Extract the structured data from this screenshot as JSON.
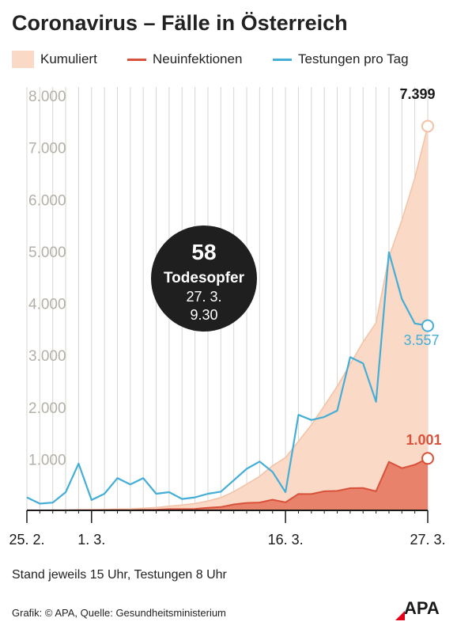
{
  "title": "Coronavirus – Fälle in Österreich",
  "legend": {
    "cumulative": "Kumuliert",
    "new_infections": "Neuinfektionen",
    "tests": "Testungen pro Tag"
  },
  "colors": {
    "cumulative_fill": "#fbd9c7",
    "cumulative_line": "#f4c1a4",
    "new_fill": "#e8826a",
    "new_line": "#d9513a",
    "tests_line": "#44aed6",
    "axis_text": "#b3b0a8",
    "grid": "#d9d6d0"
  },
  "annotation": {
    "number": "58",
    "label": "Todesopfer",
    "date": "27. 3.",
    "time": "9.30"
  },
  "footer": {
    "note": "Stand jeweils 15 Uhr, Testungen 8 Uhr",
    "source": "Grafik: © APA, Quelle: Gesundheitsministerium",
    "logo": "APA"
  },
  "chart_data": {
    "type": "area",
    "x": [
      "25. 2.",
      "26. 2.",
      "27. 2.",
      "28. 2.",
      "29. 2.",
      "1. 3.",
      "2. 3.",
      "3. 3.",
      "4. 3.",
      "5. 3.",
      "6. 3.",
      "7. 3.",
      "8. 3.",
      "9. 3.",
      "10. 3.",
      "11. 3.",
      "12. 3.",
      "13. 3.",
      "14. 3.",
      "15. 3.",
      "16. 3.",
      "17. 3.",
      "18. 3.",
      "19. 3.",
      "20. 3.",
      "21. 3.",
      "22. 3.",
      "23. 3.",
      "24. 3.",
      "25. 3.",
      "26. 3.",
      "27. 3."
    ],
    "x_tick_labels": [
      "25. 2.",
      "1. 3.",
      "16. 3.",
      "27. 3."
    ],
    "ylim": [
      0,
      8000
    ],
    "y_tick_labels": [
      "1.000",
      "2.000",
      "3.000",
      "4.000",
      "5.000",
      "6.000",
      "7.000",
      "8.000"
    ],
    "y_ticks": [
      1000,
      2000,
      3000,
      4000,
      5000,
      6000,
      7000,
      8000
    ],
    "grid": "vertical lines at each day",
    "series": [
      {
        "name": "Kumuliert",
        "values": [
          2,
          2,
          3,
          5,
          9,
          14,
          18,
          24,
          29,
          41,
          55,
          79,
          104,
          131,
          182,
          246,
          361,
          504,
          655,
          860,
          1016,
          1332,
          1646,
          2013,
          2388,
          2814,
          3244,
          3611,
          4876,
          5588,
          6398,
          7399
        ]
      },
      {
        "name": "Neuinfektionen",
        "values": [
          2,
          0,
          1,
          2,
          4,
          5,
          4,
          6,
          5,
          12,
          14,
          24,
          25,
          27,
          51,
          64,
          115,
          143,
          151,
          205,
          156,
          316,
          314,
          367,
          375,
          426,
          430,
          367,
          934,
          812,
          878,
          1001
        ]
      },
      {
        "name": "Testungen pro Tag",
        "values": [
          250,
          130,
          150,
          350,
          900,
          200,
          320,
          620,
          500,
          620,
          320,
          350,
          220,
          250,
          320,
          360,
          580,
          800,
          940,
          740,
          350,
          1840,
          1740,
          1800,
          1920,
          2950,
          2830,
          2090,
          4970,
          4070,
          3600,
          3557
        ]
      }
    ],
    "data_labels": {
      "cumulative_last": "7.399",
      "tests_last": "3.557",
      "new_last": "1.001"
    }
  }
}
